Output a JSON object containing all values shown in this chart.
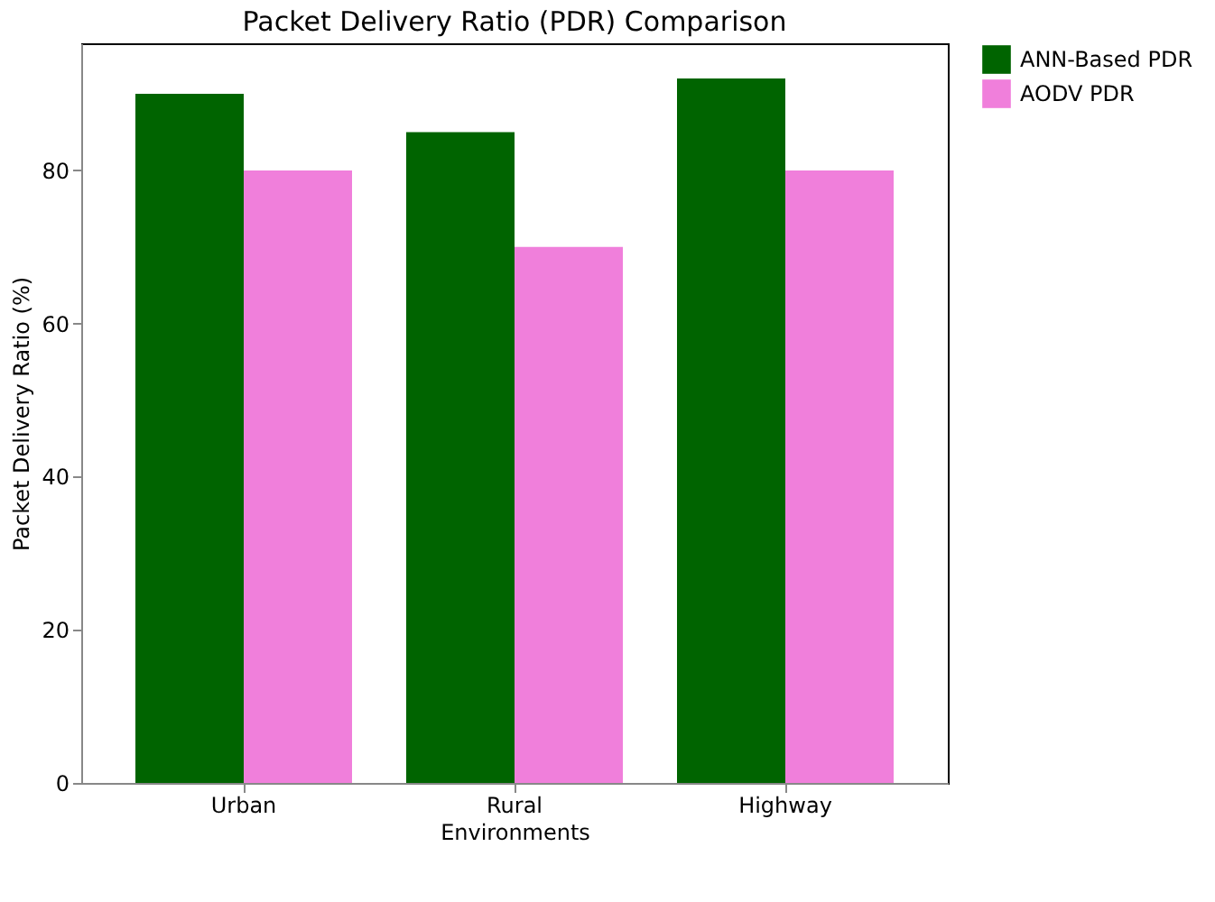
{
  "chart_data": {
    "type": "bar",
    "title": "Packet Delivery Ratio (PDR) Comparison",
    "xlabel": "Environments",
    "ylabel": "Packet Delivery Ratio (%)",
    "categories": [
      "Urban",
      "Rural",
      "Highway"
    ],
    "series": [
      {
        "name": "ANN-Based PDR",
        "color": "#006400",
        "values": [
          90,
          85,
          92
        ]
      },
      {
        "name": "AODV PDR",
        "color": "#f07fdb",
        "values": [
          80,
          70,
          80
        ]
      }
    ],
    "ylim": [
      0,
      96.6
    ],
    "yticks": [
      0,
      20,
      40,
      60,
      80
    ],
    "grid": false,
    "legend": "top right"
  }
}
